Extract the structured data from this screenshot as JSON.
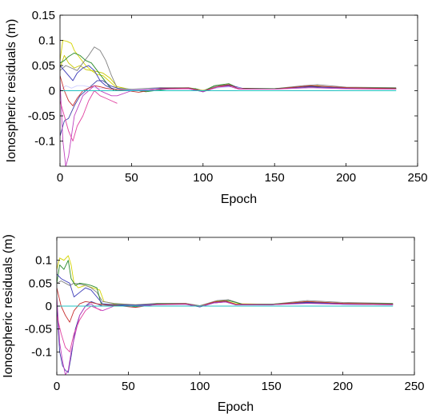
{
  "chart_data": [
    {
      "type": "line",
      "title": "",
      "xlabel": "Epoch",
      "ylabel": "Ionospheric residuals (m)",
      "xlim": [
        0,
        250
      ],
      "ylim": [
        -0.15,
        0.15
      ],
      "xticks": [
        0,
        50,
        100,
        150,
        200,
        250
      ],
      "xtick_labels": [
        "0",
        "50",
        "100",
        "150",
        "200",
        "250"
      ],
      "yticks": [
        -0.1,
        -0.05,
        0,
        0.05,
        0.1,
        0.15
      ],
      "ytick_labels": [
        "-0.1",
        "-0.05",
        "0",
        "0.05",
        "0.1",
        "0.15"
      ],
      "grid": false,
      "legend": "none",
      "series": [
        {
          "color": "#d4d400",
          "x": [
            0,
            2,
            5,
            8,
            10,
            14,
            18,
            22,
            26,
            30,
            34,
            38,
            40,
            45,
            55,
            70,
            90,
            100,
            110,
            117,
            125,
            132,
            150,
            170,
            180,
            190,
            200,
            215,
            235
          ],
          "y": [
            0.06,
            0.1,
            0.098,
            0.094,
            0.08,
            0.065,
            0.05,
            0.04,
            0.032,
            0.03,
            0.02,
            0.01,
            0.005,
            0.003,
            0.002,
            0.005,
            0.006,
            0.001,
            0.007,
            0.012,
            0.005,
            0.004,
            0.004,
            0.008,
            0.01,
            0.006,
            0.005,
            0.005,
            0.004
          ]
        },
        {
          "color": "#c8c800",
          "x": [
            0,
            3,
            6,
            10,
            14,
            18,
            22,
            26,
            30,
            35,
            40,
            50,
            70,
            90,
            100,
            110,
            118,
            125,
            150,
            175,
            200,
            235
          ],
          "y": [
            0.045,
            0.07,
            0.055,
            0.045,
            0.05,
            0.042,
            0.04,
            0.038,
            0.035,
            0.025,
            0.008,
            0.002,
            0.004,
            0.005,
            -0.001,
            0.008,
            0.01,
            0.004,
            0.003,
            0.007,
            0.004,
            0.003
          ]
        },
        {
          "color": "#808080",
          "x": [
            0,
            4,
            8,
            12,
            16,
            20,
            24,
            28,
            32,
            36,
            40,
            50,
            70,
            90,
            100,
            110,
            118,
            125,
            150,
            170,
            180,
            200,
            235
          ],
          "y": [
            0.04,
            0.05,
            0.045,
            0.04,
            0.055,
            0.07,
            0.087,
            0.08,
            0.06,
            0.03,
            0.005,
            0.003,
            0.006,
            0.006,
            0.0,
            0.01,
            0.012,
            0.004,
            0.004,
            0.01,
            0.012,
            0.007,
            0.006
          ]
        },
        {
          "color": "#2a8a2a",
          "x": [
            0,
            3,
            6,
            10,
            14,
            18,
            22,
            26,
            30,
            34,
            38,
            42,
            50,
            60,
            80,
            95,
            100,
            108,
            118,
            125,
            150,
            175,
            200,
            235
          ],
          "y": [
            0.055,
            0.06,
            0.068,
            0.075,
            0.07,
            0.06,
            0.055,
            0.04,
            0.025,
            0.01,
            0.0,
            0.004,
            0.002,
            -0.002,
            0.005,
            0.004,
            -0.001,
            0.01,
            0.014,
            0.005,
            0.004,
            0.009,
            0.006,
            0.005
          ]
        },
        {
          "color": "#3a3ab8",
          "x": [
            0,
            3,
            6,
            9,
            12,
            16,
            20,
            24,
            28,
            32,
            36,
            40,
            50,
            70,
            90,
            100,
            112,
            120,
            130,
            150,
            175,
            200,
            235
          ],
          "y": [
            0.05,
            0.04,
            0.03,
            0.02,
            0.035,
            0.045,
            0.05,
            0.04,
            0.02,
            0.01,
            0.005,
            0.002,
            0.001,
            0.005,
            0.004,
            -0.002,
            0.009,
            0.01,
            0.003,
            0.003,
            0.008,
            0.004,
            0.004
          ]
        },
        {
          "color": "#4040a8",
          "x": [
            0,
            3,
            6,
            10,
            14,
            18,
            22,
            26,
            30,
            35,
            40,
            50,
            70,
            90,
            100,
            110,
            118,
            125,
            150,
            175,
            200,
            235
          ],
          "y": [
            -0.09,
            -0.06,
            -0.055,
            -0.03,
            -0.01,
            0.0,
            0.01,
            0.02,
            0.02,
            0.01,
            0.005,
            0.0,
            0.004,
            0.005,
            -0.002,
            0.008,
            0.011,
            0.004,
            0.003,
            0.008,
            0.005,
            0.004
          ]
        },
        {
          "color": "#d0d0ff",
          "x": [
            0,
            4,
            8,
            12,
            16,
            20,
            24,
            28,
            32,
            36,
            40,
            50,
            70,
            90,
            100,
            112,
            120,
            130,
            150,
            175,
            200,
            235
          ],
          "y": [
            0.0,
            0.01,
            0.005,
            0.01,
            0.01,
            0.008,
            0.006,
            0.004,
            0.004,
            0.003,
            0.003,
            0.002,
            0.004,
            0.004,
            0.0,
            0.006,
            0.008,
            0.003,
            0.003,
            0.006,
            0.004,
            0.003
          ]
        },
        {
          "color": "#c83232",
          "x": [
            0,
            3,
            6,
            9,
            12,
            16,
            20,
            24,
            28,
            32,
            36,
            40,
            45,
            55,
            70,
            90,
            100,
            110,
            118,
            125,
            150,
            175,
            200,
            235
          ],
          "y": [
            0.03,
            0.0,
            -0.02,
            -0.03,
            -0.015,
            0.0,
            0.005,
            0.01,
            0.008,
            0.005,
            0.003,
            0.002,
            0.001,
            -0.003,
            0.004,
            0.005,
            -0.001,
            0.008,
            0.012,
            0.004,
            0.003,
            0.01,
            0.006,
            0.004
          ]
        },
        {
          "color": "#c040c0",
          "x": [
            0,
            2,
            4,
            6,
            8,
            10,
            13,
            16,
            20,
            24,
            28,
            32,
            36,
            40,
            50,
            70,
            90,
            100,
            110,
            118,
            125,
            150,
            175,
            200,
            235
          ],
          "y": [
            0.02,
            -0.1,
            -0.15,
            -0.13,
            -0.09,
            -0.05,
            -0.03,
            -0.01,
            0.0,
            0.01,
            0.0,
            -0.005,
            -0.01,
            -0.01,
            0.0,
            0.003,
            0.004,
            -0.002,
            0.007,
            0.009,
            0.003,
            0.003,
            0.006,
            0.004,
            0.003
          ]
        },
        {
          "color": "#e040a0",
          "x": [
            0,
            3,
            6,
            9,
            12,
            16,
            20,
            24,
            28,
            32,
            36,
            40
          ],
          "y": [
            -0.02,
            -0.05,
            -0.08,
            -0.1,
            -0.07,
            -0.05,
            -0.02,
            0.0,
            -0.01,
            -0.015,
            -0.02,
            -0.025
          ]
        },
        {
          "color": "#20c0c0",
          "x": [
            0,
            50,
            100,
            150,
            200,
            235
          ],
          "y": [
            0.0,
            0.0,
            0.0,
            0.0,
            0.0,
            0.0
          ]
        }
      ]
    },
    {
      "type": "line",
      "title": "",
      "xlabel": "Epoch",
      "ylabel": "Ionospheric residuals (m)",
      "xlim": [
        0,
        250
      ],
      "ylim": [
        -0.15,
        0.15
      ],
      "xticks": [
        0,
        50,
        100,
        150,
        200,
        250
      ],
      "xtick_labels": [
        "0",
        "50",
        "100",
        "150",
        "200",
        "250"
      ],
      "yticks": [
        -0.1,
        -0.05,
        0,
        0.05,
        0.1
      ],
      "ytick_labels": [
        "-0.1",
        "-0.05",
        "0",
        "0.05",
        "0.1"
      ],
      "grid": false,
      "legend": "none",
      "series": [
        {
          "color": "#d4d400",
          "x": [
            0,
            2,
            5,
            8,
            10,
            12,
            15,
            20,
            25,
            30,
            33,
            40,
            55,
            70,
            90,
            100,
            110,
            117,
            125,
            150,
            175,
            200,
            235
          ],
          "y": [
            0.08,
            0.105,
            0.1,
            0.11,
            0.09,
            0.05,
            0.04,
            0.045,
            0.04,
            0.035,
            0.01,
            0.005,
            0.003,
            0.005,
            0.006,
            0.0,
            0.01,
            0.012,
            0.005,
            0.004,
            0.01,
            0.006,
            0.005
          ]
        },
        {
          "color": "#808080",
          "x": [
            0,
            3,
            6,
            9,
            12,
            16,
            20,
            24,
            28,
            32,
            40,
            55,
            70,
            90,
            100,
            112,
            120,
            130,
            150,
            175,
            200,
            235
          ],
          "y": [
            0.05,
            0.055,
            0.05,
            0.045,
            0.05,
            0.048,
            0.045,
            0.04,
            0.03,
            0.01,
            0.006,
            0.003,
            0.006,
            0.006,
            0.001,
            0.012,
            0.014,
            0.004,
            0.004,
            0.012,
            0.008,
            0.006
          ]
        },
        {
          "color": "#2a8a2a",
          "x": [
            0,
            2,
            5,
            8,
            10,
            13,
            16,
            20,
            24,
            28,
            31,
            35,
            45,
            55,
            70,
            90,
            100,
            112,
            120,
            130,
            150,
            175,
            200,
            235
          ],
          "y": [
            0.05,
            0.09,
            0.08,
            0.1,
            0.06,
            0.045,
            0.05,
            0.048,
            0.045,
            0.04,
            0.005,
            0.004,
            0.003,
            -0.002,
            0.005,
            0.005,
            -0.001,
            0.01,
            0.012,
            0.004,
            0.004,
            0.009,
            0.006,
            0.005
          ]
        },
        {
          "color": "#3a3ab8",
          "x": [
            0,
            3,
            6,
            9,
            12,
            16,
            20,
            24,
            28,
            32,
            40,
            55,
            70,
            90,
            100,
            110,
            118,
            125,
            150,
            175,
            200,
            235
          ],
          "y": [
            0.07,
            0.06,
            0.055,
            0.05,
            0.02,
            0.03,
            0.04,
            0.035,
            0.02,
            0.005,
            0.003,
            0.002,
            0.004,
            0.005,
            -0.001,
            0.008,
            0.01,
            0.003,
            0.003,
            0.008,
            0.005,
            0.004
          ]
        },
        {
          "color": "#4040a8",
          "x": [
            0,
            2,
            4,
            6,
            8,
            10,
            13,
            16,
            20,
            24,
            28,
            32,
            40,
            55,
            70,
            90,
            100,
            110,
            118,
            125,
            150,
            175,
            200,
            235
          ],
          "y": [
            0.0,
            -0.1,
            -0.13,
            -0.14,
            -0.145,
            -0.11,
            -0.05,
            -0.02,
            0.0,
            0.01,
            0.005,
            0.0,
            0.002,
            0.0,
            0.004,
            0.004,
            -0.002,
            0.007,
            0.009,
            0.003,
            0.003,
            0.007,
            0.004,
            0.003
          ]
        },
        {
          "color": "#c83232",
          "x": [
            0,
            3,
            6,
            9,
            12,
            16,
            20,
            24,
            28,
            32,
            40,
            55,
            70,
            90,
            100,
            110,
            118,
            125,
            150,
            175,
            200,
            235
          ],
          "y": [
            0.04,
            0.0,
            -0.02,
            -0.035,
            -0.01,
            0.005,
            0.01,
            0.008,
            0.005,
            0.003,
            0.002,
            -0.003,
            0.004,
            0.005,
            -0.001,
            0.009,
            0.011,
            0.004,
            0.003,
            0.01,
            0.006,
            0.004
          ]
        },
        {
          "color": "#c040c0",
          "x": [
            0,
            2,
            4,
            6,
            8,
            10,
            13,
            16,
            20,
            24,
            28,
            32,
            40,
            55,
            70,
            90,
            100,
            110,
            118,
            125,
            150,
            175,
            200,
            235
          ],
          "y": [
            0.02,
            -0.08,
            -0.12,
            -0.15,
            -0.14,
            -0.1,
            -0.06,
            -0.02,
            0.0,
            0.005,
            -0.005,
            -0.01,
            0.0,
            0.0,
            0.003,
            0.004,
            -0.001,
            0.007,
            0.009,
            0.003,
            0.003,
            0.006,
            0.004,
            0.003
          ]
        },
        {
          "color": "#e040a0",
          "x": [
            0,
            3,
            6,
            9,
            12,
            16,
            20,
            24,
            28,
            31
          ],
          "y": [
            -0.02,
            -0.06,
            -0.09,
            -0.1,
            -0.06,
            -0.03,
            -0.01,
            0.0,
            -0.005,
            -0.01
          ]
        },
        {
          "color": "#20c0c0",
          "x": [
            0,
            50,
            100,
            150,
            200,
            235
          ],
          "y": [
            0.0,
            0.0,
            0.0,
            0.0,
            0.0,
            0.0
          ]
        }
      ]
    }
  ]
}
